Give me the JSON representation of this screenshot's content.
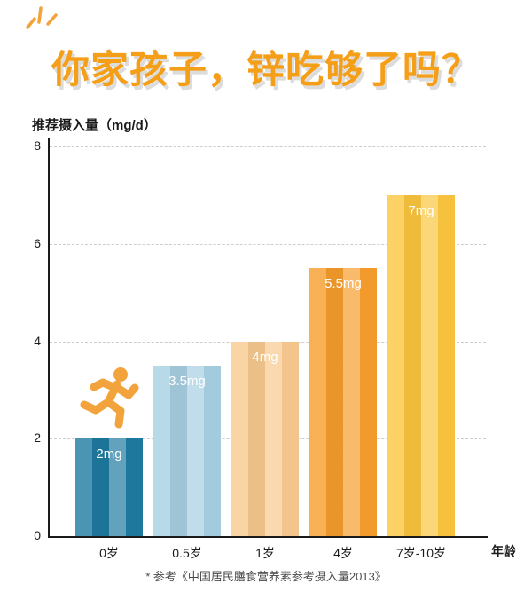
{
  "page": {
    "title": "你家孩子，锌吃够了吗？",
    "footnote": "* 参考《中国居民膳食营养素参考摄入量2013》"
  },
  "chart_data": {
    "type": "bar",
    "title": "你家孩子，锌吃够了吗？",
    "ylabel": "推荐摄入量（mg/d）",
    "xlabel": "年龄",
    "ylim": [
      0,
      8
    ],
    "yticks": [
      0,
      2,
      4,
      6,
      8
    ],
    "grid": "dashed-horizontal",
    "categories": [
      "0岁",
      "0.5岁",
      "1岁",
      "4岁",
      "7岁-10岁"
    ],
    "values": [
      2,
      3.5,
      4,
      5.5,
      7
    ],
    "bar_labels": [
      "2mg",
      "3.5mg",
      "4mg",
      "5.5mg",
      "7mg"
    ],
    "bar_colors": [
      "#1e7aa1",
      "#a6cfe2",
      "#f8c98f",
      "#f79d2c",
      "#fbc53e"
    ],
    "footnote": "* 参考《中国居民膳食营养素参考摄入量2013》"
  },
  "colors": {
    "title": "#f59e18",
    "title_shadow": "#dcdcdc",
    "axis": "#1a1a1a",
    "gridline": "#cccccc",
    "bar_label_text": "#ffffff",
    "icon_accent": "#f2a33c"
  },
  "icons": {
    "runner": "runner-icon",
    "sparkle": "sparkle-icon"
  }
}
